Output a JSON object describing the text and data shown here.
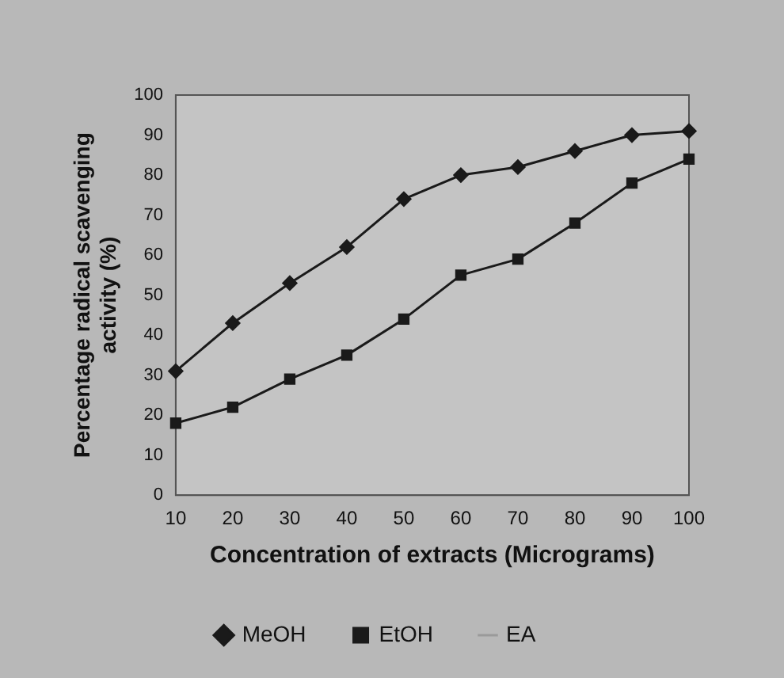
{
  "chart_data": {
    "type": "line",
    "xlabel": "Concentration of extracts (Micrograms)",
    "ylabel": "Percentage radical scavenging activity (%)",
    "categories": [
      "10",
      "20",
      "30",
      "40",
      "50",
      "60",
      "70",
      "80",
      "90",
      "100"
    ],
    "series": [
      {
        "name": "MeOH",
        "color": "#1a1a1a",
        "marker": "diamond",
        "values": [
          31,
          43,
          53,
          62,
          74,
          80,
          82,
          86,
          90,
          91
        ]
      },
      {
        "name": "EtOH",
        "color": "#1a1a1a",
        "marker": "square",
        "values": [
          18,
          22,
          29,
          35,
          44,
          55,
          59,
          68,
          78,
          84
        ]
      },
      {
        "name": "EA",
        "color": "#9a9a9a",
        "marker": "none",
        "values": [
          null,
          null,
          null,
          null,
          null,
          null,
          null,
          null,
          null,
          null
        ]
      }
    ],
    "ylim": [
      0,
      100
    ],
    "yticks": [
      0,
      10,
      20,
      30,
      40,
      50,
      60,
      70,
      80,
      90,
      100
    ],
    "grid": false,
    "legend": "bottom"
  }
}
